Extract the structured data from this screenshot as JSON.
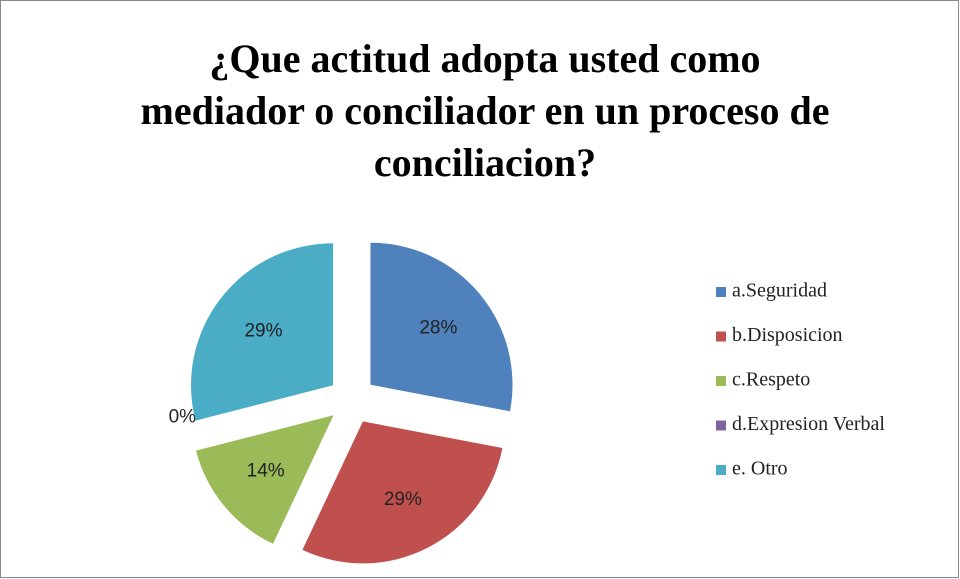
{
  "chart_data": {
    "type": "pie",
    "title": [
      "¿Que actitud adopta usted como",
      "mediador o conciliador  en un proceso de",
      "conciliacion?"
    ],
    "categories": [
      "a.Seguridad",
      "b.Disposicion",
      "c.Respeto",
      "d.Expresion Verbal",
      "e. Otro"
    ],
    "values": [
      28,
      29,
      14,
      0,
      29
    ],
    "value_labels": [
      "28%",
      "29%",
      "14%",
      "0%",
      "29%"
    ],
    "colors": [
      "#4f81bd",
      "#c0504d",
      "#9bbb59",
      "#8064a2",
      "#4bacc6"
    ],
    "legend": "right"
  }
}
